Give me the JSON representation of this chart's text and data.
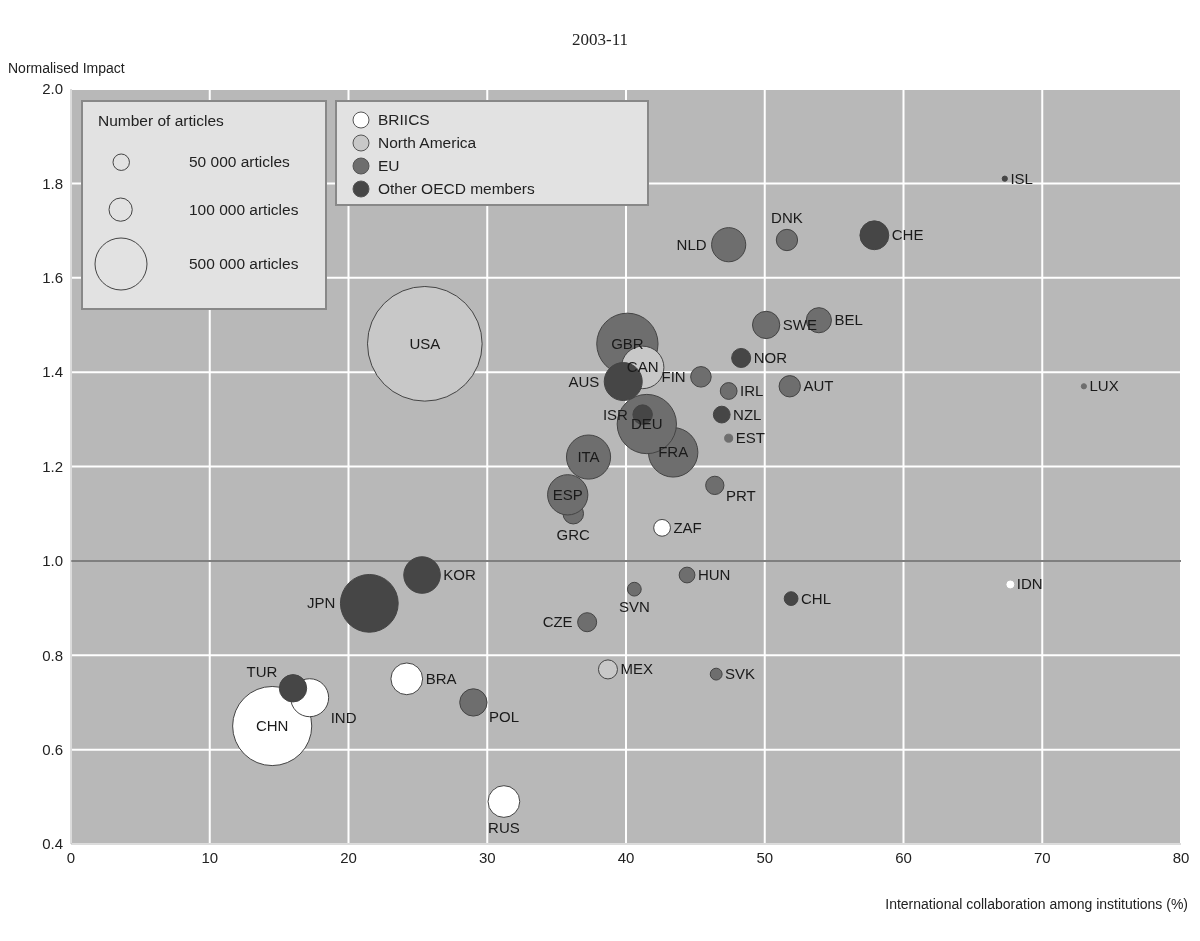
{
  "chart_data": {
    "type": "bubble",
    "title": "2003-11",
    "xlabel": "International collaboration among institutions (%)",
    "ylabel": "Normalised Impact",
    "legend_title": "Number of articles",
    "legend": "top left",
    "grid": true,
    "xlim": [
      0,
      80
    ],
    "xticks": [
      0,
      10,
      20,
      30,
      40,
      50,
      60,
      70,
      80
    ],
    "ylim": [
      0.4,
      2.0
    ],
    "yticks": [
      0.4,
      0.6,
      0.8,
      {
        "value": 1,
        "label": "1.0"
      },
      1.2,
      1.4,
      1.6,
      1.8,
      {
        "value": 2,
        "label": "2.0"
      }
    ],
    "size_legend": [
      {
        "value": 50000,
        "label": "50 000 articles"
      },
      {
        "value": 100000,
        "label": "100 000 articles"
      },
      {
        "value": 500000,
        "label": "500 000 articles"
      }
    ],
    "ref_lines": [
      {
        "axis": "y",
        "value": 1,
        "label": null,
        "color": "#555555"
      }
    ],
    "series": [
      {
        "name": "BRIICS",
        "color": "#ffffff",
        "x": [
          24.2,
          14.5,
          17.2,
          67.7,
          31.2,
          42.6
        ],
        "values": [
          0.75,
          0.65,
          0.71,
          0.95,
          0.49,
          1.07
        ],
        "sizes": [
          186000,
          1157000,
          267000,
          9000,
          186000,
          52000
        ],
        "value_labels": [
          "BRA",
          "CHN",
          "IND",
          "IDN",
          "RUS",
          "ZAF"
        ]
      },
      {
        "name": "North America",
        "color": "#c8c8c8",
        "x": [
          25.5,
          41.2,
          38.7
        ],
        "values": [
          1.46,
          1.41,
          0.77
        ],
        "sizes": [
          2430000,
          334000,
          67000
        ],
        "value_labels": [
          "USA",
          "CAN",
          "MEX"
        ]
      },
      {
        "name": "EU",
        "color": "#6e6e6e",
        "x": [
          51.8,
          53.9,
          37.2,
          51.6,
          47.4,
          45.4,
          43.4,
          41.5,
          36.2,
          44.4,
          47.4,
          37.3,
          73.0,
          47.4,
          29.0,
          46.4,
          46.5,
          40.6,
          35.8,
          50.1,
          40.1
        ],
        "values": [
          1.37,
          1.51,
          0.87,
          1.68,
          1.26,
          1.39,
          1.23,
          1.29,
          1.1,
          0.97,
          1.36,
          1.22,
          1.37,
          1.67,
          0.7,
          1.16,
          0.76,
          0.94,
          1.14,
          1.5,
          1.46
        ],
        "sizes": [
          84000,
          117000,
          67000,
          84000,
          12000,
          78000,
          452000,
          650000,
          78000,
          46000,
          52000,
          360000,
          5000,
          216000,
          138000,
          62000,
          26000,
          35000,
          300000,
          138000,
          695000
        ],
        "value_labels": [
          "AUT",
          "BEL",
          "CZE",
          "DNK",
          "EST",
          "FIN",
          "FRA",
          "DEU",
          "GRC",
          "HUN",
          "IRL",
          "ITA",
          "LUX",
          "NLD",
          "POL",
          "PRT",
          "SVK",
          "SVN",
          "ESP",
          "SWE",
          "GBR"
        ]
      },
      {
        "name": "Other OECD members",
        "color": "#464646",
        "x": [
          39.8,
          51.9,
          67.3,
          41.2,
          21.5,
          25.3,
          46.9,
          48.3,
          57.9,
          16.0
        ],
        "values": [
          1.38,
          0.92,
          1.81,
          1.31,
          0.91,
          0.97,
          1.31,
          1.43,
          1.69,
          0.73
        ],
        "sizes": [
          267000,
          35000,
          5000,
          70000,
          617000,
          247000,
          52000,
          67000,
          154000,
          138000
        ],
        "value_labels": [
          "AUS",
          "CHL",
          "ISL",
          "ISR",
          "JPN",
          "KOR",
          "NZL",
          "NOR",
          "CHE",
          "TUR"
        ]
      }
    ]
  }
}
